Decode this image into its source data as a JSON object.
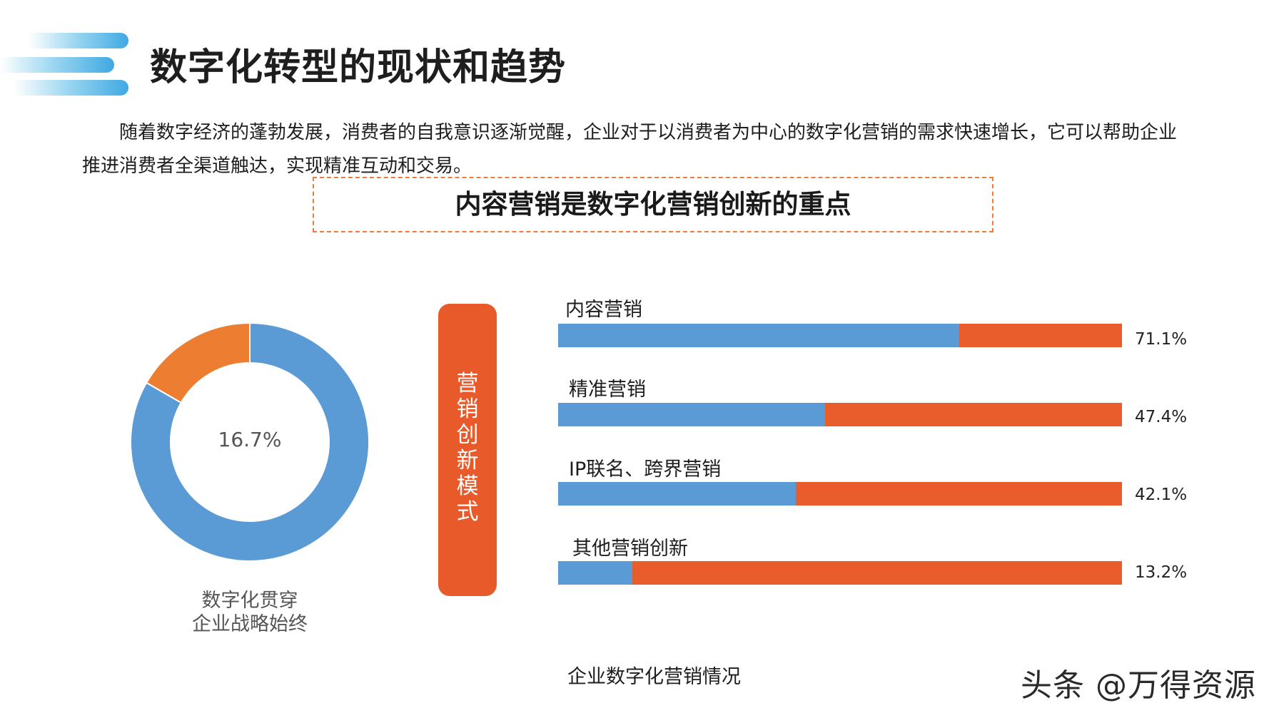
{
  "header": {
    "title": "数字化转型的现状和趋势",
    "deco_color": "#3fa9e2"
  },
  "intro": {
    "text": "随着数字经济的蓬勃发展，消费者的自我意识逐渐觉醒，企业对于以消费者为中心的数字化营销的需求快速增长，它可以帮助企业推进消费者全渠道触达，实现精准互动和交易。"
  },
  "highlight": {
    "text": "内容营销是数字化营销创新的重点",
    "border_color": "#ef7a3a"
  },
  "vertical_label": {
    "chars": [
      "营",
      "销",
      "创",
      "新",
      "模",
      "式"
    ],
    "color": "#e85a2a"
  },
  "donut": {
    "center_label": "16.7%",
    "caption_line1": "数字化贯穿",
    "caption_line2": "企业战略始终"
  },
  "bar_chart": {
    "caption": "企业数字化营销情况"
  },
  "watermark": {
    "text": "头条 @万得资源"
  },
  "chart_data": [
    {
      "type": "pie",
      "variant": "donut",
      "slices": [
        {
          "value": 83.3,
          "color": "#5b9bd5"
        },
        {
          "value": 16.7,
          "color": "#ed7d31"
        }
      ],
      "center_label": "16.7%"
    },
    {
      "type": "bar",
      "orientation": "horizontal",
      "categories": [
        "内容营销",
        "精准营销",
        "IP联名、跨界营销",
        "其他营销创新"
      ],
      "values": [
        71.1,
        47.4,
        42.1,
        13.2
      ],
      "value_labels": [
        "71.1%",
        "47.4%",
        "42.1%",
        "13.2%"
      ],
      "xlim": [
        0,
        100
      ],
      "fill_color": "#5b9bd5",
      "track_color": "#e95c2b",
      "title": "企业数字化营销情况"
    }
  ]
}
